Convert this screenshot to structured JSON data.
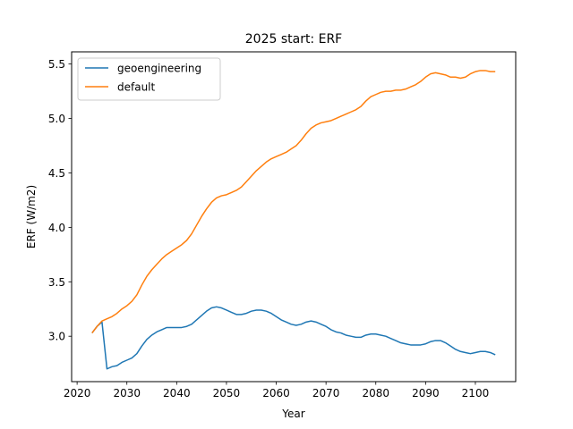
{
  "chart_data": {
    "type": "line",
    "title": "2025 start: ERF",
    "xlabel": "Year",
    "ylabel": "ERF (W/m2)",
    "xlim": [
      2018.9,
      2108.1
    ],
    "ylim": [
      2.583,
      5.612
    ],
    "xticks": [
      2020,
      2030,
      2040,
      2050,
      2060,
      2070,
      2080,
      2090,
      2100
    ],
    "yticks": [
      3.0,
      3.5,
      4.0,
      4.5,
      5.0,
      5.5
    ],
    "grid": false,
    "legend_position": "upper-left",
    "series": [
      {
        "name": "geoengineering",
        "color": "#1f77b4",
        "x": [
          2023,
          2024,
          2025,
          2026,
          2027,
          2028,
          2029,
          2030,
          2031,
          2032,
          2033,
          2034,
          2035,
          2036,
          2037,
          2038,
          2039,
          2040,
          2041,
          2042,
          2043,
          2044,
          2045,
          2046,
          2047,
          2048,
          2049,
          2050,
          2051,
          2052,
          2053,
          2054,
          2055,
          2056,
          2057,
          2058,
          2059,
          2060,
          2061,
          2062,
          2063,
          2064,
          2065,
          2066,
          2067,
          2068,
          2069,
          2070,
          2071,
          2072,
          2073,
          2074,
          2075,
          2076,
          2077,
          2078,
          2079,
          2080,
          2081,
          2082,
          2083,
          2084,
          2085,
          2086,
          2087,
          2088,
          2089,
          2090,
          2091,
          2092,
          2093,
          2094,
          2095,
          2096,
          2097,
          2098,
          2099,
          2100,
          2101,
          2102,
          2103,
          2104
        ],
        "y": [
          3.03,
          3.09,
          3.13,
          2.7,
          2.72,
          2.73,
          2.76,
          2.78,
          2.8,
          2.84,
          2.91,
          2.97,
          3.01,
          3.04,
          3.06,
          3.08,
          3.08,
          3.08,
          3.08,
          3.09,
          3.11,
          3.15,
          3.19,
          3.23,
          3.26,
          3.27,
          3.26,
          3.24,
          3.22,
          3.2,
          3.2,
          3.21,
          3.23,
          3.24,
          3.24,
          3.23,
          3.21,
          3.18,
          3.15,
          3.13,
          3.11,
          3.1,
          3.11,
          3.13,
          3.14,
          3.13,
          3.11,
          3.09,
          3.06,
          3.04,
          3.03,
          3.01,
          3.0,
          2.99,
          2.99,
          3.01,
          3.02,
          3.02,
          3.01,
          3.0,
          2.98,
          2.96,
          2.94,
          2.93,
          2.92,
          2.92,
          2.92,
          2.93,
          2.95,
          2.96,
          2.96,
          2.94,
          2.91,
          2.88,
          2.86,
          2.85,
          2.84,
          2.85,
          2.86,
          2.86,
          2.85,
          2.83
        ]
      },
      {
        "name": "default",
        "color": "#ff7f0e",
        "x": [
          2023,
          2024,
          2025,
          2026,
          2027,
          2028,
          2029,
          2030,
          2031,
          2032,
          2033,
          2034,
          2035,
          2036,
          2037,
          2038,
          2039,
          2040,
          2041,
          2042,
          2043,
          2044,
          2045,
          2046,
          2047,
          2048,
          2049,
          2050,
          2051,
          2052,
          2053,
          2054,
          2055,
          2056,
          2057,
          2058,
          2059,
          2060,
          2061,
          2062,
          2063,
          2064,
          2065,
          2066,
          2067,
          2068,
          2069,
          2070,
          2071,
          2072,
          2073,
          2074,
          2075,
          2076,
          2077,
          2078,
          2079,
          2080,
          2081,
          2082,
          2083,
          2084,
          2085,
          2086,
          2087,
          2088,
          2089,
          2090,
          2091,
          2092,
          2093,
          2094,
          2095,
          2096,
          2097,
          2098,
          2099,
          2100,
          2101,
          2102,
          2103,
          2104
        ],
        "y": [
          3.03,
          3.09,
          3.14,
          3.16,
          3.18,
          3.21,
          3.25,
          3.28,
          3.32,
          3.38,
          3.47,
          3.55,
          3.61,
          3.66,
          3.71,
          3.75,
          3.78,
          3.81,
          3.84,
          3.88,
          3.94,
          4.02,
          4.1,
          4.17,
          4.23,
          4.27,
          4.29,
          4.3,
          4.32,
          4.34,
          4.37,
          4.42,
          4.47,
          4.52,
          4.56,
          4.6,
          4.63,
          4.65,
          4.67,
          4.69,
          4.72,
          4.75,
          4.8,
          4.86,
          4.91,
          4.94,
          4.96,
          4.97,
          4.98,
          5.0,
          5.02,
          5.04,
          5.06,
          5.08,
          5.11,
          5.16,
          5.2,
          5.22,
          5.24,
          5.25,
          5.25,
          5.26,
          5.26,
          5.27,
          5.29,
          5.31,
          5.34,
          5.38,
          5.41,
          5.42,
          5.41,
          5.4,
          5.38,
          5.38,
          5.37,
          5.38,
          5.41,
          5.43,
          5.44,
          5.44,
          5.43,
          5.43
        ]
      }
    ]
  }
}
